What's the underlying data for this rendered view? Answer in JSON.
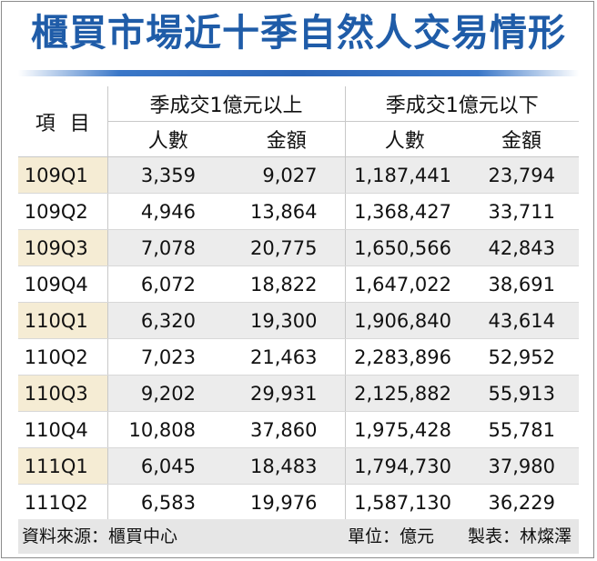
{
  "title": "櫃買市場近十季自然人交易情形",
  "header": {
    "item_label": "項目",
    "group1": "季成交1億元以上",
    "group2": "季成交1億元以下",
    "sub_people": "人數",
    "sub_amount": "金額"
  },
  "rows": [
    {
      "period": "109Q1",
      "g1_people": "3,359",
      "g1_amount": "9,027",
      "g2_people": "1,187,441",
      "g2_amount": "23,794"
    },
    {
      "period": "109Q2",
      "g1_people": "4,946",
      "g1_amount": "13,864",
      "g2_people": "1,368,427",
      "g2_amount": "33,711"
    },
    {
      "period": "109Q3",
      "g1_people": "7,078",
      "g1_amount": "20,775",
      "g2_people": "1,650,566",
      "g2_amount": "42,843"
    },
    {
      "period": "109Q4",
      "g1_people": "6,072",
      "g1_amount": "18,822",
      "g2_people": "1,647,022",
      "g2_amount": "38,691"
    },
    {
      "period": "110Q1",
      "g1_people": "6,320",
      "g1_amount": "19,300",
      "g2_people": "1,906,840",
      "g2_amount": "43,614"
    },
    {
      "period": "110Q2",
      "g1_people": "7,023",
      "g1_amount": "21,463",
      "g2_people": "2,283,896",
      "g2_amount": "52,952"
    },
    {
      "period": "110Q3",
      "g1_people": "9,202",
      "g1_amount": "29,931",
      "g2_people": "2,125,882",
      "g2_amount": "55,913"
    },
    {
      "period": "110Q4",
      "g1_people": "10,808",
      "g1_amount": "37,860",
      "g2_people": "1,975,428",
      "g2_amount": "55,781"
    },
    {
      "period": "111Q1",
      "g1_people": "6,045",
      "g1_amount": "18,483",
      "g2_people": "1,794,730",
      "g2_amount": "37,980"
    },
    {
      "period": "111Q2",
      "g1_people": "6,583",
      "g1_amount": "19,976",
      "g2_people": "1,587,130",
      "g2_amount": "36,229"
    }
  ],
  "footer": {
    "source": "資料來源：櫃買中心",
    "unit": "單位：億元",
    "maker": "製表：林燦澤"
  },
  "colors": {
    "title": "#1f5ca8",
    "accent_line": "#2c66b8",
    "label_highlight": "#f5ecd4",
    "row_shade": "#ececec",
    "footer_bg": "#e6e6e6"
  }
}
